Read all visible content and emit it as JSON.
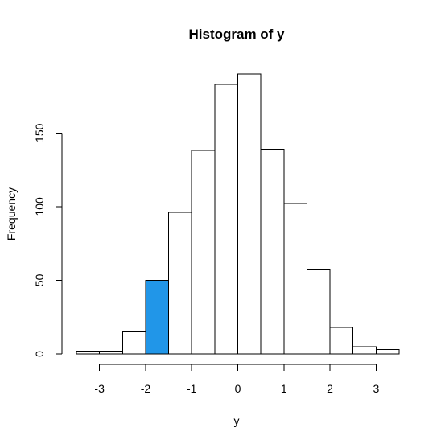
{
  "chart_data": {
    "type": "bar",
    "subtype": "histogram",
    "title": "Histogram of y",
    "xlabel": "y",
    "ylabel": "Frequency",
    "bins": [
      {
        "x0": -3.5,
        "x1": -3.0,
        "count": 2
      },
      {
        "x0": -3.0,
        "x1": -2.5,
        "count": 2
      },
      {
        "x0": -2.5,
        "x1": -2.0,
        "count": 15
      },
      {
        "x0": -2.0,
        "x1": -1.5,
        "count": 50,
        "highlighted": true
      },
      {
        "x0": -1.5,
        "x1": -1.0,
        "count": 96
      },
      {
        "x0": -1.0,
        "x1": -0.5,
        "count": 138
      },
      {
        "x0": -0.5,
        "x1": 0.0,
        "count": 183
      },
      {
        "x0": 0.0,
        "x1": 0.5,
        "count": 190
      },
      {
        "x0": 0.5,
        "x1": 1.0,
        "count": 139
      },
      {
        "x0": 1.0,
        "x1": 1.5,
        "count": 102
      },
      {
        "x0": 1.5,
        "x1": 2.0,
        "count": 57
      },
      {
        "x0": 2.0,
        "x1": 2.5,
        "count": 18
      },
      {
        "x0": 2.5,
        "x1": 3.0,
        "count": 5
      },
      {
        "x0": 3.0,
        "x1": 3.5,
        "count": 3
      }
    ],
    "x_ticks": [
      -3,
      -2,
      -1,
      0,
      1,
      2,
      3
    ],
    "x_tick_labels": [
      "-3",
      "-2",
      "-1",
      "0",
      "1",
      "2",
      "3"
    ],
    "y_ticks": [
      0,
      50,
      100,
      150
    ],
    "y_tick_labels": [
      "0",
      "50",
      "100",
      "150"
    ],
    "xlim": [
      -3.5,
      3.5
    ],
    "ylim": [
      0,
      190
    ],
    "grid": false,
    "colors": {
      "bar_fill": "#ffffff",
      "highlight_fill": "#2196e8",
      "stroke": "#000000"
    }
  }
}
